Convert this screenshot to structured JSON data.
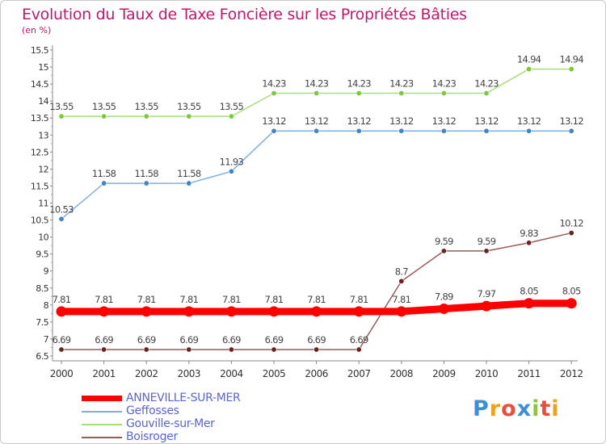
{
  "header": {
    "title": "Evolution du Taux de Taxe Foncière sur les Propriétés Bâties",
    "unit": "(en %)"
  },
  "logo": {
    "letters": [
      "P",
      "r",
      "o",
      "x",
      "i",
      "t",
      "i"
    ],
    "colors": [
      "#3d8fd6",
      "#f0a020",
      "#e94e3c",
      "#3d8fd6",
      "#8cc63f",
      "#e94e3c",
      "#f0a020"
    ]
  },
  "chart_data": {
    "type": "line",
    "title": "Evolution du Taux de Taxe Foncière sur les Propriétés Bâties",
    "ylabel": "(en %)",
    "x": [
      "2000",
      "2001",
      "2002",
      "2003",
      "2004",
      "2005",
      "2006",
      "2007",
      "2008",
      "2009",
      "2010",
      "2011",
      "2012"
    ],
    "ylim": [
      6.5,
      15.5
    ],
    "yticks": [
      6.5,
      7,
      7.5,
      8,
      8.5,
      9,
      9.5,
      10,
      10.5,
      11,
      11.5,
      12,
      12.5,
      13,
      13.5,
      14,
      14.5,
      15,
      15.5
    ],
    "grid": false,
    "legend_position": "bottom-left",
    "series": [
      {
        "name": "ANNEVILLE-SUR-MER",
        "color": "#ff0000",
        "values": [
          7.81,
          7.81,
          7.81,
          7.81,
          7.81,
          7.81,
          7.81,
          7.81,
          7.81,
          7.89,
          7.97,
          8.05,
          8.05
        ],
        "labels": [
          "7.81",
          "7.81",
          "7.81",
          "7.81",
          "7.81",
          "7.81",
          "7.81",
          "7.81",
          "7.81",
          "7.89",
          "7.97",
          "8.05",
          "8.05"
        ]
      },
      {
        "name": "Geffosses",
        "color": "#6fa3d8",
        "values": [
          10.53,
          11.58,
          11.58,
          11.58,
          11.93,
          13.12,
          13.12,
          13.12,
          13.12,
          13.12,
          13.12,
          13.12,
          13.12
        ],
        "labels": [
          "10.53",
          "11.58",
          "11.58",
          "11.58",
          "11.93",
          "13.12",
          "13.12",
          "13.12",
          "13.12",
          "13.12",
          "13.12",
          "13.12",
          "13.12"
        ]
      },
      {
        "name": "Gouville-sur-Mer",
        "color": "#99d86f",
        "values": [
          13.55,
          13.55,
          13.55,
          13.55,
          13.55,
          14.23,
          14.23,
          14.23,
          14.23,
          14.23,
          14.23,
          14.94,
          14.94
        ],
        "labels": [
          "13.55",
          "13.55",
          "13.55",
          "13.55",
          "13.55",
          "14.23",
          "14.23",
          "14.23",
          "14.23",
          "14.23",
          "14.23",
          "14.94",
          "14.94"
        ]
      },
      {
        "name": "Boisroger",
        "color": "#8b4a4a",
        "values": [
          6.69,
          6.69,
          6.69,
          6.69,
          6.69,
          6.69,
          6.69,
          6.69,
          8.7,
          9.59,
          9.59,
          9.83,
          10.12
        ],
        "labels": [
          "6.69",
          "6.69",
          "6.69",
          "6.69",
          "6.69",
          "6.69",
          "6.69",
          "6.69",
          "8.7",
          "9.59",
          "9.59",
          "9.83",
          "10.12"
        ]
      }
    ]
  }
}
